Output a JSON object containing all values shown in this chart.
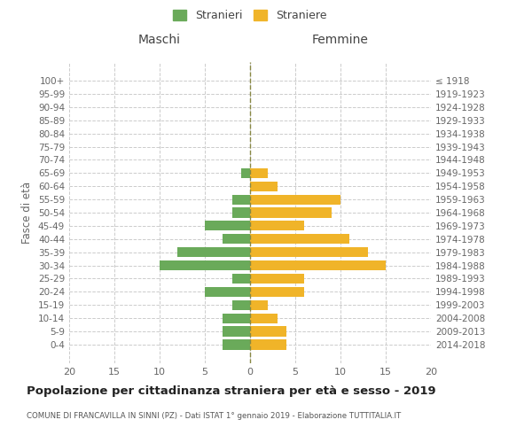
{
  "age_groups": [
    "100+",
    "95-99",
    "90-94",
    "85-89",
    "80-84",
    "75-79",
    "70-74",
    "65-69",
    "60-64",
    "55-59",
    "50-54",
    "45-49",
    "40-44",
    "35-39",
    "30-34",
    "25-29",
    "20-24",
    "15-19",
    "10-14",
    "5-9",
    "0-4"
  ],
  "birth_years": [
    "≤ 1918",
    "1919-1923",
    "1924-1928",
    "1929-1933",
    "1934-1938",
    "1939-1943",
    "1944-1948",
    "1949-1953",
    "1954-1958",
    "1959-1963",
    "1964-1968",
    "1969-1973",
    "1974-1978",
    "1979-1983",
    "1984-1988",
    "1989-1993",
    "1994-1998",
    "1999-2003",
    "2004-2008",
    "2009-2013",
    "2014-2018"
  ],
  "male_values": [
    0,
    0,
    0,
    0,
    0,
    0,
    0,
    1,
    0,
    2,
    2,
    5,
    3,
    8,
    10,
    2,
    5,
    2,
    3,
    3,
    3
  ],
  "female_values": [
    0,
    0,
    0,
    0,
    0,
    0,
    0,
    2,
    3,
    10,
    9,
    6,
    11,
    13,
    15,
    6,
    6,
    2,
    3,
    4,
    4
  ],
  "male_color": "#6aaa5a",
  "female_color": "#f0b429",
  "title": "Popolazione per cittadinanza straniera per età e sesso - 2019",
  "subtitle": "COMUNE DI FRANCAVILLA IN SINNI (PZ) - Dati ISTAT 1° gennaio 2019 - Elaborazione TUTTITALIA.IT",
  "ylabel_left": "Fasce di età",
  "xlabel_left": "Maschi",
  "xlabel_right": "Femmine",
  "xlim": 20,
  "legend_stranieri": "Stranieri",
  "legend_straniere": "Straniere",
  "bg_color": "#ffffff",
  "grid_color": "#cccccc",
  "text_color": "#666666"
}
